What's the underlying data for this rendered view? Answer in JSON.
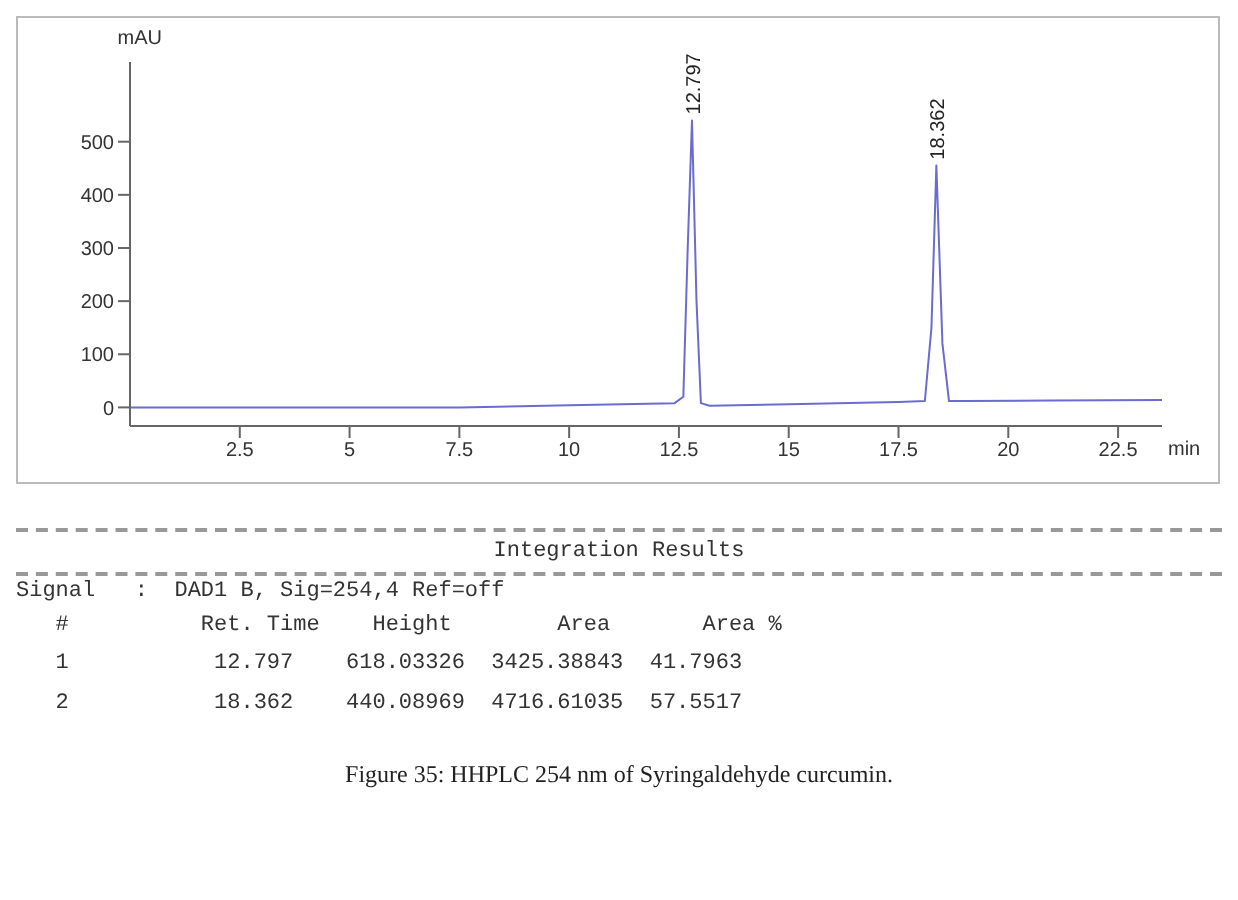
{
  "chart_data": {
    "type": "line",
    "xlabel": "min",
    "ylabel": "mAU",
    "x": [
      0,
      2.5,
      5,
      7.5,
      10,
      12.4,
      12.6,
      12.7,
      12.797,
      12.9,
      13.0,
      13.2,
      15,
      17.5,
      18.1,
      18.25,
      18.362,
      18.5,
      18.65,
      19,
      21,
      23.5
    ],
    "series": [
      {
        "color": "#6b6bd0",
        "values": [
          0,
          0,
          0,
          0,
          4,
          8,
          20,
          300,
          540,
          200,
          8,
          3,
          6,
          10,
          12,
          150,
          455,
          120,
          12,
          12,
          13,
          14
        ]
      }
    ],
    "xlim": [
      0,
      23.5
    ],
    "xticks": [
      2.5,
      5,
      7.5,
      10,
      12.5,
      15,
      17.5,
      20,
      22.5
    ],
    "ylim": [
      -35,
      650
    ],
    "yticks": [
      0,
      100,
      200,
      300,
      400,
      500
    ],
    "marker": "none",
    "line_style": "solid",
    "annotations": [
      {
        "text": "12.797",
        "x": 12.797,
        "y": 540
      },
      {
        "text": "18.362",
        "x": 18.362,
        "y": 455
      },
      "Integration Results",
      "Signal   :  DAD1 B, Sig=254,4 Ref=off",
      "   #          Ret. Time    Height        Area       Area %",
      "   1           12.797    618.03326  3425.38843  41.7963",
      "   2           18.362    440.08969  4716.61035  57.5517",
      "Figure 35: HHPLC 254 nm of Syringaldehyde curcumin."
    ]
  }
}
